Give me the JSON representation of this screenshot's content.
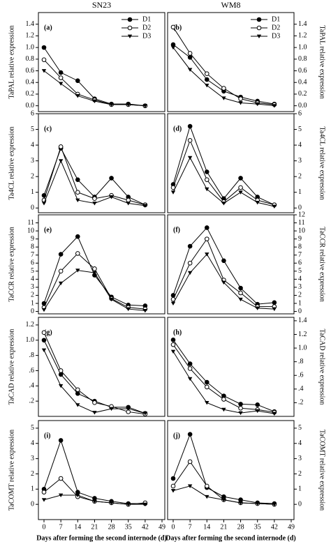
{
  "chart_data": [
    {
      "type": "line",
      "title": "SN23",
      "ylabel": "TaPAL relative expression",
      "panel_label": "(a)",
      "yaxis_side": "left",
      "legend": true,
      "x": [
        0,
        7,
        14,
        21,
        28,
        35,
        42
      ],
      "xlim": [
        0,
        49
      ],
      "ylim": [
        -0.1,
        1.6
      ],
      "yticks": [
        {
          "value": 0,
          "label": "0.0"
        },
        0.2,
        0.4,
        0.6,
        0.8,
        {
          "value": 1,
          "label": "1.0"
        },
        1.2,
        1.4
      ],
      "series": [
        {
          "name": "D1",
          "color": "#000000",
          "marker": "filled-circle",
          "values": [
            1.0,
            0.57,
            0.43,
            0.12,
            0.03,
            0.03,
            0.0
          ]
        },
        {
          "name": "D2",
          "color": "#000000",
          "marker": "open-circle",
          "values": [
            0.79,
            0.48,
            0.2,
            0.1,
            0.02,
            0.02,
            0.0
          ]
        },
        {
          "name": "D3",
          "color": "#000000",
          "marker": "triangle",
          "values": [
            0.6,
            0.38,
            0.17,
            0.08,
            0.02,
            0.02,
            0.0
          ]
        }
      ]
    },
    {
      "type": "line",
      "title": "WM8",
      "ylabel": "TaPAL relative expression",
      "panel_label": "(b)",
      "yaxis_side": "right",
      "legend": true,
      "x": [
        0,
        7,
        14,
        21,
        28,
        35,
        42
      ],
      "xlim": [
        0,
        49
      ],
      "ylim": [
        -0.1,
        1.6
      ],
      "yticks": [
        {
          "value": 0,
          "label": "0.0"
        },
        0.2,
        0.4,
        0.6,
        0.8,
        {
          "value": 1,
          "label": "1.0"
        },
        1.2,
        1.4
      ],
      "series": [
        {
          "name": "D1",
          "color": "#000000",
          "marker": "filled-circle",
          "values": [
            1.05,
            0.83,
            0.45,
            0.25,
            0.15,
            0.08,
            0.03
          ]
        },
        {
          "name": "D2",
          "color": "#000000",
          "marker": "open-circle",
          "values": [
            1.35,
            0.9,
            0.55,
            0.3,
            0.12,
            0.05,
            0.02
          ]
        },
        {
          "name": "D3",
          "color": "#000000",
          "marker": "triangle",
          "values": [
            1.0,
            0.62,
            0.35,
            0.13,
            0.05,
            0.03,
            0.0
          ]
        }
      ]
    },
    {
      "type": "line",
      "ylabel": "Ta4CL relative expression",
      "panel_label": "(c)",
      "yaxis_side": "left",
      "x": [
        0,
        7,
        14,
        21,
        28,
        35,
        42
      ],
      "xlim": [
        0,
        49
      ],
      "ylim": [
        -0.3,
        6
      ],
      "yticks": [
        0,
        1,
        2,
        3,
        4,
        5,
        6
      ],
      "series": [
        {
          "name": "D1",
          "color": "#000000",
          "marker": "filled-circle",
          "values": [
            0.8,
            3.8,
            1.8,
            0.7,
            1.9,
            0.7,
            0.2
          ]
        },
        {
          "name": "D2",
          "color": "#000000",
          "marker": "open-circle",
          "values": [
            0.5,
            3.9,
            1.0,
            0.6,
            0.8,
            0.5,
            0.2
          ]
        },
        {
          "name": "D3",
          "color": "#000000",
          "marker": "triangle",
          "values": [
            0.3,
            3.0,
            0.5,
            0.3,
            0.7,
            0.3,
            0.15
          ]
        }
      ]
    },
    {
      "type": "line",
      "ylabel": "Ta4CL relative expression",
      "panel_label": "(d)",
      "yaxis_side": "right",
      "x": [
        0,
        7,
        14,
        21,
        28,
        35,
        42
      ],
      "xlim": [
        0,
        49
      ],
      "ylim": [
        -0.3,
        6
      ],
      "yticks": [
        0,
        1,
        2,
        3,
        4,
        5,
        6
      ],
      "series": [
        {
          "name": "D1",
          "color": "#000000",
          "marker": "filled-circle",
          "values": [
            1.5,
            5.2,
            2.3,
            0.6,
            1.9,
            0.7,
            0.2
          ]
        },
        {
          "name": "D2",
          "color": "#000000",
          "marker": "open-circle",
          "values": [
            1.3,
            4.3,
            1.8,
            0.4,
            1.3,
            0.5,
            0.2
          ]
        },
        {
          "name": "D3",
          "color": "#000000",
          "marker": "triangle",
          "values": [
            1.0,
            3.2,
            1.2,
            0.3,
            1.0,
            0.35,
            0.1
          ]
        }
      ]
    },
    {
      "type": "line",
      "ylabel": "TaCCR relative expression",
      "panel_label": "(e)",
      "yaxis_side": "left",
      "x": [
        0,
        7,
        14,
        21,
        28,
        35,
        42
      ],
      "xlim": [
        0,
        49
      ],
      "ylim": [
        -0.3,
        12
      ],
      "yticks": [
        0,
        1,
        2,
        3,
        4,
        5,
        6,
        7,
        8,
        9,
        10,
        11
      ],
      "series": [
        {
          "name": "D1",
          "color": "#000000",
          "marker": "filled-circle",
          "values": [
            1.0,
            7.1,
            9.3,
            4.5,
            1.8,
            0.8,
            0.7
          ]
        },
        {
          "name": "D2",
          "color": "#000000",
          "marker": "open-circle",
          "values": [
            0.5,
            5.0,
            7.2,
            5.3,
            1.6,
            0.5,
            0.3
          ]
        },
        {
          "name": "D3",
          "color": "#000000",
          "marker": "triangle",
          "values": [
            0.2,
            3.5,
            5.1,
            4.8,
            1.5,
            0.3,
            0.1
          ]
        }
      ]
    },
    {
      "type": "line",
      "ylabel": "TaCCR relative expression",
      "panel_label": "(f)",
      "yaxis_side": "right",
      "x": [
        0,
        7,
        14,
        21,
        28,
        35,
        42
      ],
      "xlim": [
        0,
        49
      ],
      "ylim": [
        -0.3,
        12
      ],
      "yticks": [
        0,
        1,
        2,
        3,
        4,
        5,
        6,
        7,
        8,
        9,
        10,
        11,
        12
      ],
      "series": [
        {
          "name": "D1",
          "color": "#000000",
          "marker": "filled-circle",
          "values": [
            2.0,
            8.1,
            10.4,
            6.3,
            2.9,
            0.9,
            1.1
          ]
        },
        {
          "name": "D2",
          "color": "#000000",
          "marker": "open-circle",
          "values": [
            1.5,
            6.0,
            9.0,
            3.9,
            2.3,
            0.6,
            0.6
          ]
        },
        {
          "name": "D3",
          "color": "#000000",
          "marker": "triangle",
          "values": [
            1.0,
            4.8,
            7.1,
            3.6,
            1.5,
            0.4,
            0.3
          ]
        }
      ]
    },
    {
      "type": "line",
      "ylabel": "TaCAD relative expression",
      "panel_label": "(g)",
      "yaxis_side": "left",
      "x": [
        0,
        7,
        14,
        21,
        28,
        35,
        42
      ],
      "xlim": [
        0,
        49
      ],
      "ylim": [
        0,
        1.3
      ],
      "yticks": [
        {
          "value": 0.2,
          "label": ".2"
        },
        {
          "value": 0.4,
          "label": ".4"
        },
        {
          "value": 0.6,
          "label": ".6"
        },
        {
          "value": 0.8,
          "label": ".8"
        },
        {
          "value": 1,
          "label": "1.0"
        },
        1.2
      ],
      "series": [
        {
          "name": "D1",
          "color": "#000000",
          "marker": "filled-circle",
          "values": [
            1.0,
            0.55,
            0.3,
            0.2,
            0.12,
            0.12,
            0.04
          ]
        },
        {
          "name": "D2",
          "color": "#000000",
          "marker": "open-circle",
          "values": [
            1.1,
            0.6,
            0.35,
            0.18,
            0.13,
            0.06,
            0.03
          ]
        },
        {
          "name": "D3",
          "color": "#000000",
          "marker": "triangle",
          "values": [
            0.87,
            0.4,
            0.15,
            0.05,
            0.1,
            0.1,
            0.04
          ]
        }
      ]
    },
    {
      "type": "line",
      "ylabel": "TaCAD relative expression",
      "panel_label": "(h)",
      "yaxis_side": "right",
      "x": [
        0,
        7,
        14,
        21,
        28,
        35,
        42
      ],
      "xlim": [
        0,
        49
      ],
      "ylim": [
        0,
        1.45
      ],
      "yticks": [
        {
          "value": 0.2,
          "label": ".2"
        },
        {
          "value": 0.4,
          "label": ".4"
        },
        {
          "value": 0.6,
          "label": ".6"
        },
        {
          "value": 0.8,
          "label": ".8"
        },
        {
          "value": 1,
          "label": "1.0"
        },
        1.2,
        1.4
      ],
      "series": [
        {
          "name": "D1",
          "color": "#000000",
          "marker": "filled-circle",
          "values": [
            1.12,
            0.77,
            0.5,
            0.3,
            0.18,
            0.17,
            0.07
          ]
        },
        {
          "name": "D2",
          "color": "#000000",
          "marker": "open-circle",
          "values": [
            1.05,
            0.7,
            0.43,
            0.25,
            0.12,
            0.1,
            0.06
          ]
        },
        {
          "name": "D3",
          "color": "#000000",
          "marker": "triangle",
          "values": [
            0.95,
            0.55,
            0.2,
            0.1,
            0.05,
            0.08,
            0.04
          ]
        }
      ]
    },
    {
      "type": "line",
      "ylabel": "TaCOMT relative expression",
      "panel_label": "(i)",
      "yaxis_side": "left",
      "xlabel": "Days after forming the second internode (d)",
      "x": [
        0,
        7,
        14,
        21,
        28,
        35,
        42
      ],
      "xlim": [
        0,
        49
      ],
      "xticks": [
        0,
        7,
        14,
        21,
        28,
        35,
        42,
        49
      ],
      "ylim": [
        -1,
        5.5
      ],
      "yticks": [
        0,
        1,
        2,
        3,
        4,
        5
      ],
      "series": [
        {
          "name": "D1",
          "color": "#000000",
          "marker": "filled-circle",
          "values": [
            1.0,
            4.2,
            0.8,
            0.4,
            0.2,
            0.05,
            0.05
          ]
        },
        {
          "name": "D2",
          "color": "#000000",
          "marker": "open-circle",
          "values": [
            0.8,
            1.7,
            0.5,
            0.2,
            0.1,
            0.0,
            0.1
          ]
        },
        {
          "name": "D3",
          "color": "#000000",
          "marker": "triangle",
          "values": [
            0.3,
            0.6,
            0.6,
            0.2,
            0.1,
            0.0,
            0.0
          ]
        }
      ]
    },
    {
      "type": "line",
      "ylabel": "TaCOMT relative expression",
      "panel_label": "(j)",
      "yaxis_side": "right",
      "xlabel": "Days after forming the second internode (d)",
      "x": [
        0,
        7,
        14,
        21,
        28,
        35,
        42
      ],
      "xlim": [
        0,
        49
      ],
      "xticks": [
        0,
        7,
        14,
        21,
        28,
        35,
        42,
        49
      ],
      "ylim": [
        -1,
        5.5
      ],
      "yticks": [
        0,
        1,
        2,
        3,
        4,
        5
      ],
      "series": [
        {
          "name": "D1",
          "color": "#000000",
          "marker": "filled-circle",
          "values": [
            1.7,
            4.6,
            1.1,
            0.5,
            0.3,
            0.1,
            0.05
          ]
        },
        {
          "name": "D2",
          "color": "#000000",
          "marker": "open-circle",
          "values": [
            1.2,
            2.8,
            1.2,
            0.3,
            0.1,
            0.05,
            0.0
          ]
        },
        {
          "name": "D3",
          "color": "#000000",
          "marker": "triangle",
          "values": [
            0.9,
            1.2,
            0.5,
            0.3,
            0.1,
            0.05,
            0.0
          ]
        }
      ]
    }
  ]
}
